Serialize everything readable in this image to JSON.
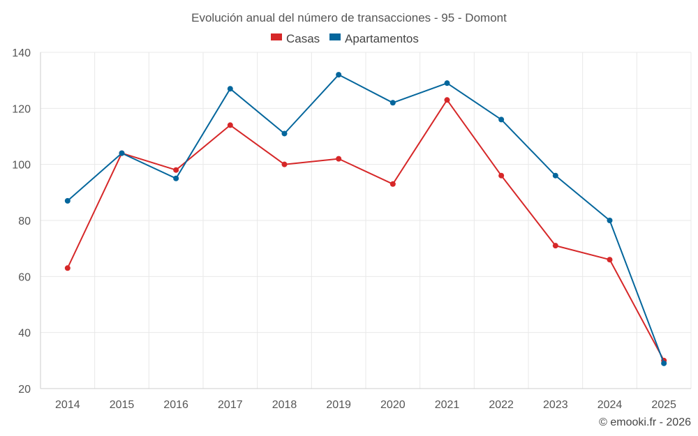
{
  "chart_data": {
    "type": "line",
    "title": "Evolución anual del número de transacciones - 95 - Domont",
    "categories": [
      "2014",
      "2015",
      "2016",
      "2017",
      "2018",
      "2019",
      "2020",
      "2021",
      "2022",
      "2023",
      "2024",
      "2025"
    ],
    "series": [
      {
        "name": "Casas",
        "color": "#d62728",
        "values": [
          63,
          104,
          98,
          114,
          100,
          102,
          93,
          123,
          96,
          71,
          66,
          30
        ]
      },
      {
        "name": "Apartamentos",
        "color": "#04669c",
        "values": [
          87,
          104,
          95,
          127,
          111,
          132,
          122,
          129,
          116,
          96,
          80,
          29
        ]
      }
    ],
    "yticks": [
      "20",
      "40",
      "60",
      "80",
      "100",
      "120",
      "140"
    ],
    "ylim": [
      20,
      140
    ],
    "xlabel": "",
    "ylabel": "",
    "grid": true,
    "legend_position": "top-center"
  },
  "credit": "© emooki.fr - 2026"
}
